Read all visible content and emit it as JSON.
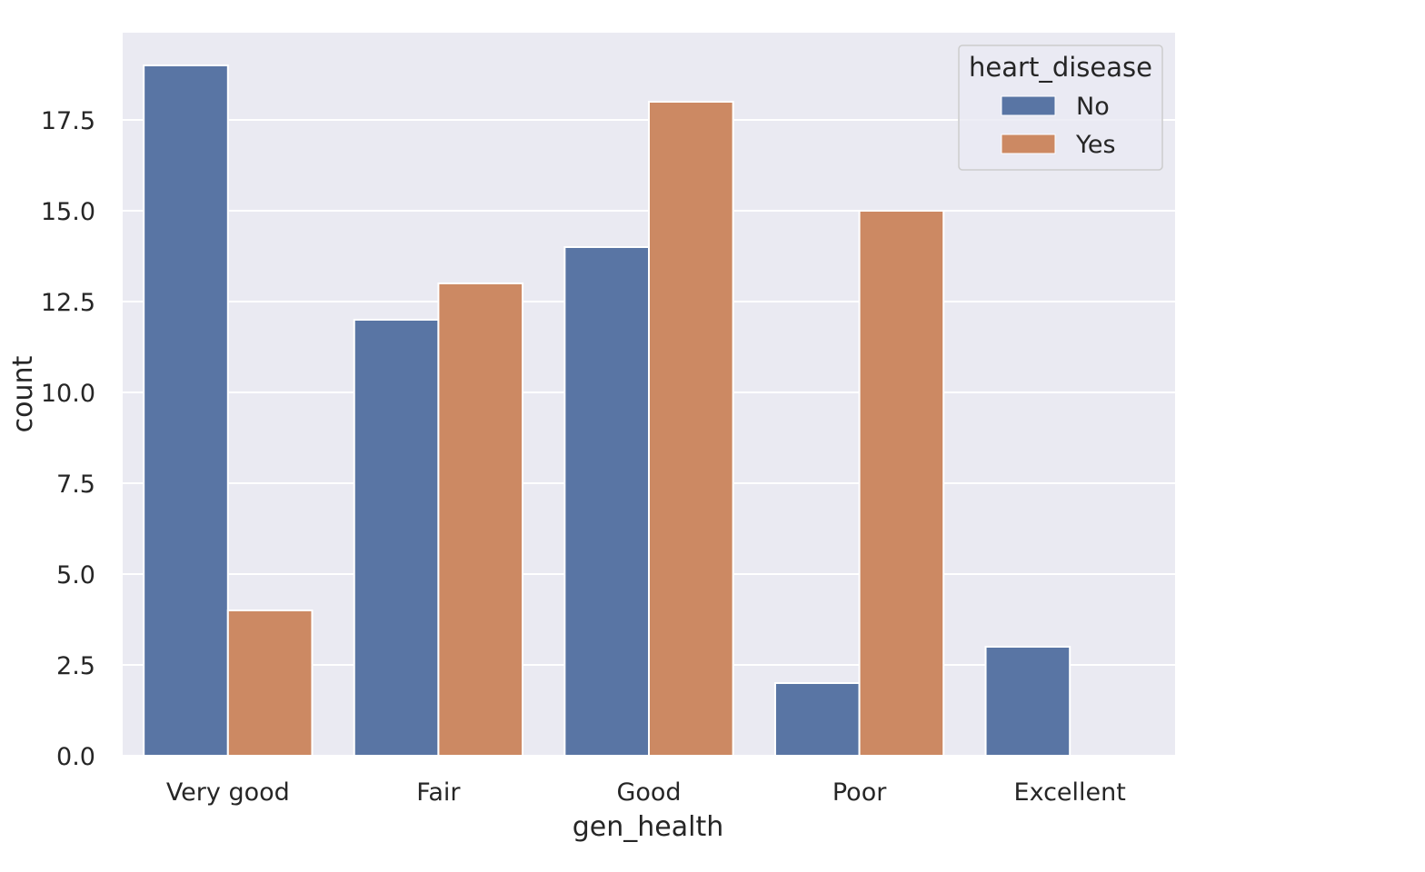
{
  "chart_data": {
    "type": "bar",
    "xlabel": "gen_health",
    "ylabel": "count",
    "categories": [
      "Very good",
      "Fair",
      "Good",
      "Poor",
      "Excellent"
    ],
    "series": [
      {
        "name": "No",
        "color": "#5975a4",
        "values": [
          19,
          12,
          14,
          2,
          3
        ]
      },
      {
        "name": "Yes",
        "color": "#cc8963",
        "values": [
          4,
          13,
          18,
          15,
          0
        ]
      }
    ],
    "ylim": [
      0,
      19.9
    ],
    "yticks": [
      "0.0",
      "2.5",
      "5.0",
      "7.5",
      "10.0",
      "12.5",
      "15.0",
      "17.5"
    ],
    "legend": {
      "title": "heart_disease",
      "placement": "top-right"
    },
    "grid": true,
    "background": "#eaeaf2"
  }
}
